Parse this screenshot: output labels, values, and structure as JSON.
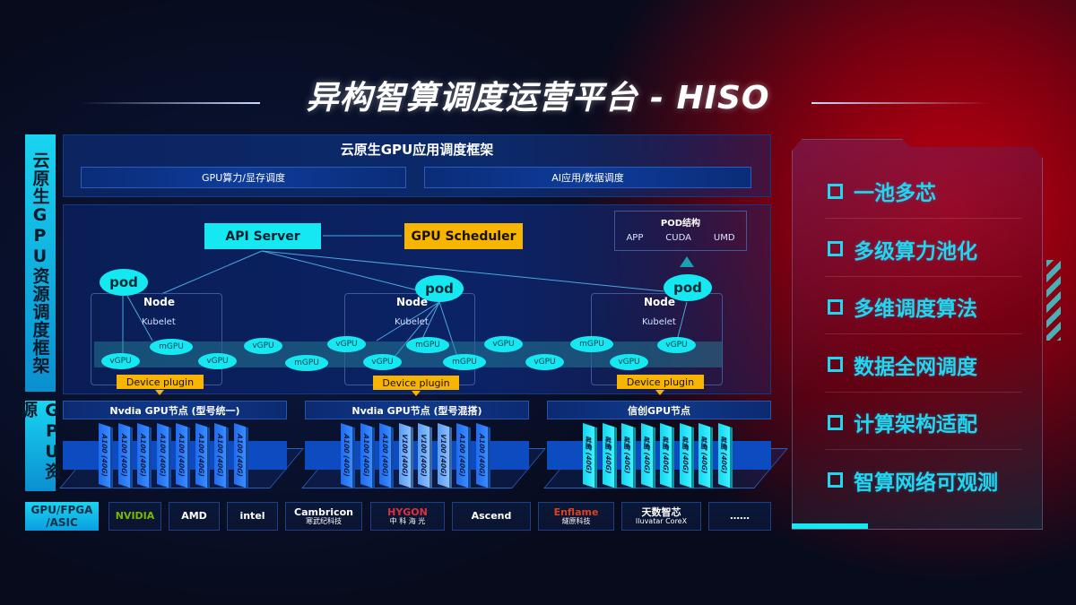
{
  "title": "异构智算调度运营平台 - HISO",
  "left_labels": {
    "top": "云原生GPU资源调度框架",
    "bottom": "GPU资源"
  },
  "framework": {
    "title": "云原生GPU应用调度框架",
    "sub": [
      "GPU算力/显存调度",
      "AI应用/数据调度"
    ]
  },
  "diagram": {
    "api_server": "API Server",
    "gpu_scheduler": "GPU Scheduler",
    "pod_structure": {
      "title": "POD结构",
      "items": [
        "APP",
        "CUDA",
        "UMD"
      ]
    },
    "pod": "pod",
    "node": "Node",
    "kubelet": "Kubelet",
    "device_plugin": "Device plugin",
    "vgpu": "vGPU",
    "mgpu": "mGPU"
  },
  "gpu_nodes": [
    {
      "title": "Nvdia GPU节点 (型号统一)",
      "chips": [
        "A100 (40G)",
        "A100 (40G)",
        "A100 (40G)",
        "A100 (40G)",
        "A100 (40G)",
        "A100 (40G)",
        "A100 (40G)",
        "A100 (40G)"
      ]
    },
    {
      "title": "Nvdia GPU节点 (型号混搭)",
      "chips": [
        "A100 (40G)",
        "A100 (40G)",
        "A100 (40G)",
        "V100 (40G)",
        "V100 (40G)",
        "V100 (40G)",
        "A100 (40G)",
        "A100 (40G)"
      ]
    },
    {
      "title": "信创GPU节点",
      "chips": [
        "昇腾 (40G)",
        "昇腾 (40G)",
        "昇腾 (40G)",
        "昇腾 (40G)",
        "昇腾 (40G)",
        "昇腾 (40G)",
        "昇腾 (40G)",
        "昇腾 (40G)"
      ]
    }
  ],
  "vendors": {
    "label": "GPU/FPGA /ASIC",
    "items": [
      {
        "name": "NVIDIA",
        "color": "#76b900"
      },
      {
        "name": "AMD",
        "color": "#ffffff"
      },
      {
        "name": "intel",
        "color": "#ffffff"
      },
      {
        "name": "Cambricon",
        "sub": "寒武纪科技",
        "color": "#ffffff"
      },
      {
        "name": "HYGON",
        "sub": "中 科 海 光",
        "color": "#e0303a"
      },
      {
        "name": "Ascend",
        "color": "#ffffff"
      },
      {
        "name": "Enflame",
        "sub": "燧原科技",
        "color": "#e04020"
      },
      {
        "name": "天数智芯",
        "sub": "Iluvatar CoreX",
        "color": "#ffffff"
      },
      {
        "name": "……",
        "color": "#ffffff"
      }
    ]
  },
  "features": [
    "一池多芯",
    "多级算力池化",
    "多维调度算法",
    "数据全网调度",
    "计算架构适配",
    "智算网络可观测"
  ],
  "colors": {
    "cyan": "#16e8f2",
    "orange": "#f7b500",
    "blue": "#0d4cc0",
    "red_glow": "#c0000f"
  }
}
